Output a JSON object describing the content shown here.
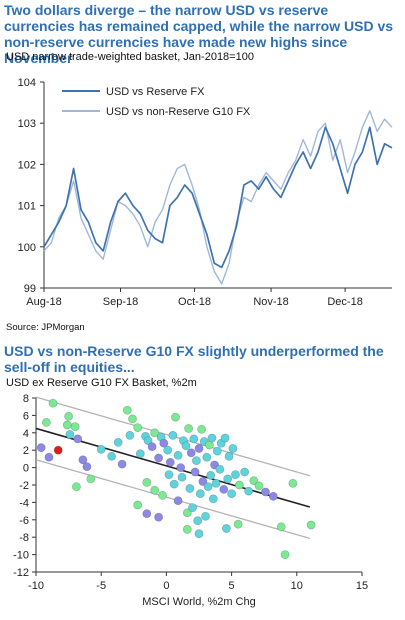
{
  "chart1": {
    "headline": "Two dollars diverge – the narrow USD vs reserve currencies has remained capped, while the narrow USD vs non-reserve currencies have made new highs since November",
    "subtitle": "USD narrow trade-weighted basket, Jan-2018=100",
    "source": "Source: JPMorgan",
    "colors": {
      "reserve": "#3f73b0",
      "non_reserve": "#9fb8da"
    }
  },
  "chart2": {
    "headline": "USD vs non-Reserve G10 FX slightly underperformed the sell-off in equities...",
    "subtitle": "USD ex Reserve G10 FX Basket, %2m",
    "colors": {
      "fit": "#222222",
      "band": "#b4b4b4",
      "highlight": "#dd1c1c"
    }
  },
  "chart_data": [
    {
      "type": "line",
      "title": "USD narrow trade-weighted basket, Jan-2018=100",
      "xlabel": "",
      "ylabel": "",
      "ylim": [
        99,
        104
      ],
      "yticks": [
        99,
        100,
        101,
        102,
        103,
        104
      ],
      "x_tick_labels": [
        "Aug-18",
        "Sep-18",
        "Oct-18",
        "Nov-18",
        "Dec-18"
      ],
      "x_tick_dates": [
        "2018-08-01",
        "2018-09-01",
        "2018-10-01",
        "2018-11-01",
        "2018-12-01"
      ],
      "xlim": [
        "2018-08-01",
        "2018-12-20"
      ],
      "grid": false,
      "legend_position": "top-left",
      "x": [
        "2018-08-01",
        "2018-08-04",
        "2018-08-07",
        "2018-08-10",
        "2018-08-13",
        "2018-08-16",
        "2018-08-19",
        "2018-08-22",
        "2018-08-25",
        "2018-08-28",
        "2018-08-31",
        "2018-09-03",
        "2018-09-06",
        "2018-09-09",
        "2018-09-12",
        "2018-09-15",
        "2018-09-18",
        "2018-09-21",
        "2018-09-24",
        "2018-09-27",
        "2018-09-30",
        "2018-10-03",
        "2018-10-06",
        "2018-10-09",
        "2018-10-12",
        "2018-10-15",
        "2018-10-18",
        "2018-10-21",
        "2018-10-24",
        "2018-10-27",
        "2018-10-30",
        "2018-11-02",
        "2018-11-05",
        "2018-11-08",
        "2018-11-11",
        "2018-11-14",
        "2018-11-17",
        "2018-11-20",
        "2018-11-23",
        "2018-11-26",
        "2018-11-29",
        "2018-12-02",
        "2018-12-05",
        "2018-12-08",
        "2018-12-11",
        "2018-12-14",
        "2018-12-17",
        "2018-12-20"
      ],
      "series": [
        {
          "name": "USD vs Reserve FX",
          "color": "#3f73b0",
          "values": [
            100.0,
            100.3,
            100.6,
            101.0,
            101.9,
            100.9,
            100.6,
            100.1,
            99.9,
            100.6,
            101.1,
            101.3,
            101.0,
            100.8,
            100.4,
            100.2,
            100.1,
            101.0,
            101.2,
            101.5,
            101.3,
            100.8,
            100.3,
            99.6,
            99.5,
            99.9,
            100.5,
            101.5,
            101.6,
            101.4,
            101.7,
            101.4,
            101.2,
            101.6,
            102.0,
            102.3,
            101.9,
            102.3,
            102.9,
            102.5,
            101.9,
            101.3,
            102.0,
            102.3,
            102.9,
            102.0,
            102.5,
            102.4
          ]
        },
        {
          "name": "USD vs non-Reserve G10 FX",
          "color": "#9fb8da",
          "values": [
            99.9,
            100.1,
            100.7,
            101.0,
            101.6,
            100.7,
            100.3,
            99.9,
            99.7,
            100.4,
            101.1,
            101.0,
            100.8,
            100.5,
            100.0,
            100.6,
            100.9,
            101.5,
            101.9,
            102.0,
            101.5,
            100.9,
            100.0,
            99.4,
            99.1,
            99.6,
            100.6,
            101.2,
            101.1,
            101.5,
            101.8,
            101.6,
            101.4,
            101.8,
            102.1,
            102.6,
            102.2,
            102.8,
            103.0,
            102.1,
            102.6,
            101.8,
            102.3,
            102.9,
            103.3,
            102.8,
            103.1,
            102.9
          ]
        }
      ]
    },
    {
      "type": "scatter",
      "title": "USD ex Reserve G10 FX Basket, %2m",
      "xlabel": "MSCI World, %2m Chg",
      "ylabel": "",
      "xlim": [
        -10,
        15
      ],
      "ylim": [
        -12,
        8
      ],
      "xticks": [
        -10,
        -5,
        0,
        5,
        10,
        15
      ],
      "yticks": [
        -12,
        -10,
        -8,
        -6,
        -4,
        -2,
        0,
        2,
        4,
        6,
        8
      ],
      "grid": false,
      "fit_line": {
        "slope": -0.43,
        "intercept": 0.2,
        "x_range": [
          -10,
          11
        ]
      },
      "bands": [
        {
          "slope": -0.43,
          "intercept": 3.8,
          "x_range": [
            -10,
            11
          ]
        },
        {
          "slope": -0.43,
          "intercept": -3.4,
          "x_range": [
            -10,
            11
          ]
        }
      ],
      "point_color_groups": {
        "purple": "#8c88e6",
        "cyan": "#5fd3dc",
        "green": "#7be893",
        "highlight": "#dd1c1c"
      },
      "points": [
        {
          "x": -9.6,
          "y": 2.3,
          "g": "purple"
        },
        {
          "x": -9.2,
          "y": 5.2,
          "g": "green"
        },
        {
          "x": -8.7,
          "y": 7.4,
          "g": "green"
        },
        {
          "x": -9.0,
          "y": 1.2,
          "g": "purple"
        },
        {
          "x": -8.3,
          "y": 2.0,
          "g": "highlight"
        },
        {
          "x": -7.5,
          "y": 5.9,
          "g": "green"
        },
        {
          "x": -7.6,
          "y": 4.9,
          "g": "green"
        },
        {
          "x": -7.0,
          "y": 4.7,
          "g": "green"
        },
        {
          "x": -7.4,
          "y": 3.8,
          "g": "cyan"
        },
        {
          "x": -6.8,
          "y": 3.3,
          "g": "purple"
        },
        {
          "x": -6.4,
          "y": 0.9,
          "g": "purple"
        },
        {
          "x": -6.1,
          "y": 0.1,
          "g": "purple"
        },
        {
          "x": -5.8,
          "y": -1.3,
          "g": "green"
        },
        {
          "x": -6.9,
          "y": -2.2,
          "g": "green"
        },
        {
          "x": -5.0,
          "y": 2.1,
          "g": "cyan"
        },
        {
          "x": -4.2,
          "y": 1.3,
          "g": "cyan"
        },
        {
          "x": -3.7,
          "y": 2.9,
          "g": "cyan"
        },
        {
          "x": -3.4,
          "y": 0.4,
          "g": "purple"
        },
        {
          "x": -3.0,
          "y": 6.6,
          "g": "green"
        },
        {
          "x": -2.6,
          "y": 5.6,
          "g": "green"
        },
        {
          "x": -2.8,
          "y": 3.7,
          "g": "cyan"
        },
        {
          "x": -2.2,
          "y": 4.6,
          "g": "green"
        },
        {
          "x": -2.0,
          "y": 1.6,
          "g": "cyan"
        },
        {
          "x": -1.6,
          "y": 3.6,
          "g": "cyan"
        },
        {
          "x": -1.4,
          "y": 3.1,
          "g": "cyan"
        },
        {
          "x": -1.1,
          "y": 2.4,
          "g": "purple"
        },
        {
          "x": -0.9,
          "y": 4.0,
          "g": "green"
        },
        {
          "x": -0.6,
          "y": 1.1,
          "g": "purple"
        },
        {
          "x": -0.4,
          "y": 3.5,
          "g": "cyan"
        },
        {
          "x": -0.2,
          "y": 2.8,
          "g": "purple"
        },
        {
          "x": 0.1,
          "y": 2.0,
          "g": "cyan"
        },
        {
          "x": 0.3,
          "y": 0.6,
          "g": "purple"
        },
        {
          "x": 0.5,
          "y": 3.7,
          "g": "cyan"
        },
        {
          "x": 0.7,
          "y": 5.8,
          "g": "green"
        },
        {
          "x": 0.9,
          "y": 1.4,
          "g": "cyan"
        },
        {
          "x": 1.1,
          "y": 0.0,
          "g": "purple"
        },
        {
          "x": 1.3,
          "y": 3.1,
          "g": "cyan"
        },
        {
          "x": 1.5,
          "y": 2.5,
          "g": "cyan"
        },
        {
          "x": 1.7,
          "y": 4.5,
          "g": "green"
        },
        {
          "x": 1.9,
          "y": 1.7,
          "g": "purple"
        },
        {
          "x": 2.1,
          "y": 3.3,
          "g": "cyan"
        },
        {
          "x": 2.3,
          "y": 0.8,
          "g": "cyan"
        },
        {
          "x": 2.5,
          "y": 2.2,
          "g": "purple"
        },
        {
          "x": 2.7,
          "y": 4.4,
          "g": "green"
        },
        {
          "x": 2.9,
          "y": 3.0,
          "g": "cyan"
        },
        {
          "x": 3.1,
          "y": 1.2,
          "g": "cyan"
        },
        {
          "x": 3.3,
          "y": 2.6,
          "g": "green"
        },
        {
          "x": 3.5,
          "y": 3.4,
          "g": "cyan"
        },
        {
          "x": 3.7,
          "y": 0.3,
          "g": "purple"
        },
        {
          "x": 3.9,
          "y": 1.9,
          "g": "cyan"
        },
        {
          "x": 4.2,
          "y": 2.8,
          "g": "cyan"
        },
        {
          "x": 4.5,
          "y": 3.4,
          "g": "cyan"
        },
        {
          "x": 4.8,
          "y": 1.3,
          "g": "cyan"
        },
        {
          "x": 5.1,
          "y": 2.2,
          "g": "cyan"
        },
        {
          "x": -1.5,
          "y": -1.7,
          "g": "green"
        },
        {
          "x": -0.9,
          "y": -2.6,
          "g": "green"
        },
        {
          "x": -0.3,
          "y": -3.2,
          "g": "green"
        },
        {
          "x": 0.2,
          "y": -0.8,
          "g": "cyan"
        },
        {
          "x": 0.6,
          "y": -1.9,
          "g": "cyan"
        },
        {
          "x": 0.9,
          "y": -3.8,
          "g": "purple"
        },
        {
          "x": 1.2,
          "y": -1.1,
          "g": "cyan"
        },
        {
          "x": 1.6,
          "y": -5.2,
          "g": "green"
        },
        {
          "x": 1.8,
          "y": -2.4,
          "g": "cyan"
        },
        {
          "x": 2.0,
          "y": -4.6,
          "g": "cyan"
        },
        {
          "x": 2.2,
          "y": -0.5,
          "g": "purple"
        },
        {
          "x": 2.4,
          "y": -6.1,
          "g": "cyan"
        },
        {
          "x": 2.6,
          "y": -3.0,
          "g": "cyan"
        },
        {
          "x": 2.8,
          "y": -1.6,
          "g": "purple"
        },
        {
          "x": 3.0,
          "y": -5.6,
          "g": "cyan"
        },
        {
          "x": 3.2,
          "y": -2.2,
          "g": "cyan"
        },
        {
          "x": 3.4,
          "y": -0.9,
          "g": "cyan"
        },
        {
          "x": 3.6,
          "y": -3.6,
          "g": "cyan"
        },
        {
          "x": 3.8,
          "y": -1.8,
          "g": "cyan"
        },
        {
          "x": 4.1,
          "y": -0.2,
          "g": "cyan"
        },
        {
          "x": 4.4,
          "y": -2.5,
          "g": "purple"
        },
        {
          "x": 4.7,
          "y": -1.3,
          "g": "cyan"
        },
        {
          "x": 5.0,
          "y": -3.0,
          "g": "cyan"
        },
        {
          "x": 5.3,
          "y": -0.8,
          "g": "cyan"
        },
        {
          "x": 5.6,
          "y": -2.0,
          "g": "green"
        },
        {
          "x": 6.0,
          "y": -0.5,
          "g": "cyan"
        },
        {
          "x": 6.3,
          "y": -2.7,
          "g": "cyan"
        },
        {
          "x": 6.7,
          "y": -1.5,
          "g": "green"
        },
        {
          "x": 7.1,
          "y": -2.1,
          "g": "green"
        },
        {
          "x": 7.6,
          "y": -2.8,
          "g": "purple"
        },
        {
          "x": 8.2,
          "y": -3.3,
          "g": "purple"
        },
        {
          "x": 9.7,
          "y": -1.8,
          "g": "green"
        },
        {
          "x": -2.2,
          "y": -4.3,
          "g": "green"
        },
        {
          "x": -1.5,
          "y": -5.3,
          "g": "purple"
        },
        {
          "x": -0.6,
          "y": -5.7,
          "g": "purple"
        },
        {
          "x": 1.6,
          "y": -7.1,
          "g": "green"
        },
        {
          "x": 2.5,
          "y": -7.6,
          "g": "cyan"
        },
        {
          "x": 4.6,
          "y": -7.0,
          "g": "cyan"
        },
        {
          "x": 5.5,
          "y": -6.5,
          "g": "green"
        },
        {
          "x": 8.8,
          "y": -6.8,
          "g": "green"
        },
        {
          "x": 11.1,
          "y": -6.6,
          "g": "green"
        },
        {
          "x": 9.1,
          "y": -10.0,
          "g": "green"
        }
      ]
    }
  ]
}
